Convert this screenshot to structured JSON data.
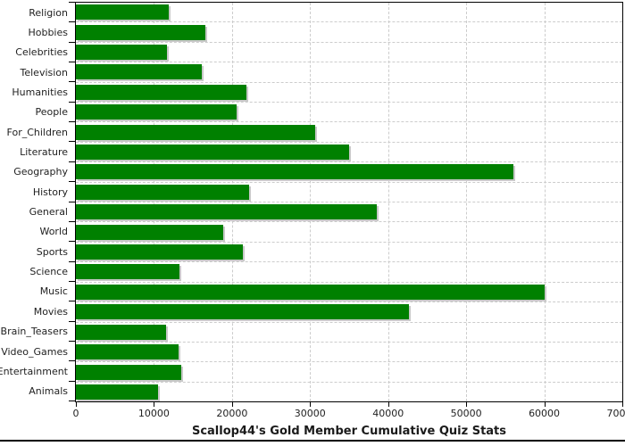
{
  "chart_data": {
    "type": "bar",
    "orientation": "horizontal",
    "title": "Scallop44's Gold Member Cumulative Quiz Stats",
    "categories": [
      "Religion",
      "Hobbies",
      "Celebrities",
      "Television",
      "Humanities",
      "People",
      "For_Children",
      "Literature",
      "Geography",
      "History",
      "General",
      "World",
      "Sports",
      "Science",
      "Music",
      "Movies",
      "Brain_Teasers",
      "Video_Games",
      "Entertainment",
      "Animals"
    ],
    "values": [
      11900,
      16600,
      11700,
      16100,
      21900,
      20600,
      30700,
      35000,
      56000,
      22200,
      38500,
      18900,
      21400,
      13300,
      60000,
      42700,
      11600,
      13100,
      13500,
      10500
    ],
    "xlabel": "",
    "ylabel": "",
    "xlim": [
      0,
      70000
    ],
    "x_ticks": [
      0,
      10000,
      20000,
      30000,
      40000,
      50000,
      60000,
      70000
    ],
    "grid": "dashed",
    "legend": "none",
    "colors": {
      "bar": "#008000",
      "bar_shadow": "#c9c9c9",
      "gridline": "#cccccc",
      "axis": "#000000",
      "text": "#222222"
    }
  }
}
